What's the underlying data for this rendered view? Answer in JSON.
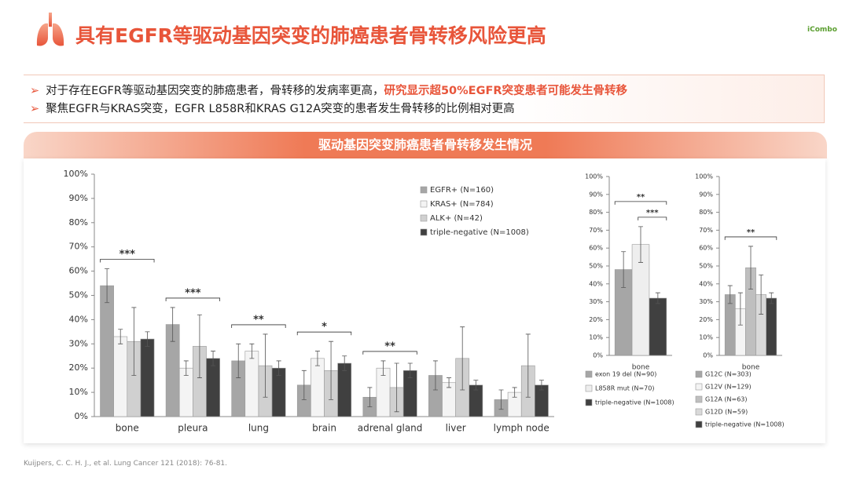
{
  "header": {
    "title": "具有EGFR等驱动基因突变的肺癌患者骨转移风险更高",
    "logo": "iCombo"
  },
  "bullets": [
    {
      "text": "对于存在EGFR等驱动基因突变的肺癌患者，骨转移的发病率更高，",
      "highlight": "研究显示超50%EGFR突变患者可能发生骨转移"
    },
    {
      "text": "聚焦EGFR与KRAS突变，EGFR L858R和KRAS G12A突变的患者发生骨转移的比例相对更高"
    }
  ],
  "banner": "驱动基因突变肺癌患者骨转移发生情况",
  "citation": "Kuijpers, C. C. H. J., et al. Lung Cancer 121 (2018): 76-81.",
  "chart_data": [
    {
      "type": "bar",
      "categories": [
        "bone",
        "pleura",
        "lung",
        "brain",
        "adrenal gland",
        "liver",
        "lymph node"
      ],
      "series": [
        {
          "name": "EGFR+ (N=160)",
          "color": "#a6a6a6",
          "values": [
            54,
            38,
            23,
            13,
            8,
            17,
            7
          ],
          "errors": [
            7,
            7,
            7,
            6,
            4,
            6,
            4
          ]
        },
        {
          "name": "KRAS+ (N=784)",
          "color": "#f4f4f4",
          "values": [
            33,
            20,
            27,
            24,
            20,
            14,
            10
          ],
          "errors": [
            3,
            3,
            3,
            3,
            3,
            2,
            2
          ]
        },
        {
          "name": "ALK+ (N=42)",
          "color": "#d0d0d0",
          "values": [
            31,
            29,
            21,
            19,
            12,
            24,
            21
          ],
          "errors": [
            14,
            13,
            13,
            12,
            10,
            13,
            13
          ]
        },
        {
          "name": "triple-negative (N=1008)",
          "color": "#404040",
          "values": [
            32,
            24,
            20,
            22,
            19,
            13,
            13
          ],
          "errors": [
            3,
            3,
            3,
            3,
            3,
            2,
            2
          ]
        }
      ],
      "annotations": [
        {
          "text": "***",
          "category": "bone"
        },
        {
          "text": "***",
          "category": "pleura"
        },
        {
          "text": "**",
          "category": "lung"
        },
        {
          "text": "*",
          "category": "brain"
        },
        {
          "text": "**",
          "category": "adrenal gland"
        }
      ],
      "ylim": [
        0,
        100
      ],
      "yticks": [
        {
          "value": 0,
          "label": "0%"
        },
        {
          "value": 10,
          "label": "10%"
        },
        {
          "value": 20,
          "label": "20%"
        },
        {
          "value": 30,
          "label": "30%"
        },
        {
          "value": 40,
          "label": "40%"
        },
        {
          "value": 50,
          "label": "50%"
        },
        {
          "value": 60,
          "label": "60%"
        },
        {
          "value": 70,
          "label": "70%"
        },
        {
          "value": 80,
          "label": "80%"
        },
        {
          "value": 90,
          "label": "90%"
        },
        {
          "value": 100,
          "label": "100%"
        }
      ],
      "legend": "top-right"
    },
    {
      "type": "bar",
      "categories": [
        "bone"
      ],
      "series": [
        {
          "name": "exon 19 del (N=90)",
          "color": "#a6a6a6",
          "values": [
            48
          ],
          "errors": [
            10
          ]
        },
        {
          "name": "L858R mut (N=70)",
          "color": "#eeeeee",
          "values": [
            62
          ],
          "errors": [
            10
          ]
        },
        {
          "name": "triple-negative (N=1008)",
          "color": "#404040",
          "values": [
            32
          ],
          "errors": [
            3
          ]
        }
      ],
      "annotations": [
        {
          "text": "**",
          "category": "bone"
        },
        {
          "text": "***",
          "category": "bone"
        }
      ],
      "ylim": [
        0,
        100
      ],
      "yticks": [
        {
          "value": 0,
          "label": "0%"
        },
        {
          "value": 10,
          "label": "10%"
        },
        {
          "value": 20,
          "label": "20%"
        },
        {
          "value": 30,
          "label": "30%"
        },
        {
          "value": 40,
          "label": "40%"
        },
        {
          "value": 50,
          "label": "50%"
        },
        {
          "value": 60,
          "label": "60%"
        },
        {
          "value": 70,
          "label": "70%"
        },
        {
          "value": 80,
          "label": "80%"
        },
        {
          "value": 90,
          "label": "90%"
        },
        {
          "value": 100,
          "label": "100%"
        }
      ],
      "legend": "bottom"
    },
    {
      "type": "bar",
      "categories": [
        "bone"
      ],
      "series": [
        {
          "name": "G12C (N=303)",
          "color": "#a6a6a6",
          "values": [
            34
          ],
          "errors": [
            5
          ]
        },
        {
          "name": "G12V (N=129)",
          "color": "#f4f4f4",
          "values": [
            26
          ],
          "errors": [
            9
          ]
        },
        {
          "name": "G12A (N=63)",
          "color": "#bfbfbf",
          "values": [
            49
          ],
          "errors": [
            12
          ]
        },
        {
          "name": "G12D (N=59)",
          "color": "#d9d9d9",
          "values": [
            34
          ],
          "errors": [
            11
          ]
        },
        {
          "name": "triple-negative (N=1008)",
          "color": "#404040",
          "values": [
            32
          ],
          "errors": [
            3
          ]
        }
      ],
      "annotations": [
        {
          "text": "**",
          "category": "bone"
        }
      ],
      "ylim": [
        0,
        100
      ],
      "yticks": [
        {
          "value": 0,
          "label": "0%"
        },
        {
          "value": 10,
          "label": "10%"
        },
        {
          "value": 20,
          "label": "20%"
        },
        {
          "value": 30,
          "label": "30%"
        },
        {
          "value": 40,
          "label": "40%"
        },
        {
          "value": 50,
          "label": "50%"
        },
        {
          "value": 60,
          "label": "60%"
        },
        {
          "value": 70,
          "label": "70%"
        },
        {
          "value": 80,
          "label": "80%"
        },
        {
          "value": 90,
          "label": "90%"
        },
        {
          "value": 100,
          "label": "100%"
        }
      ],
      "legend": "bottom"
    }
  ]
}
